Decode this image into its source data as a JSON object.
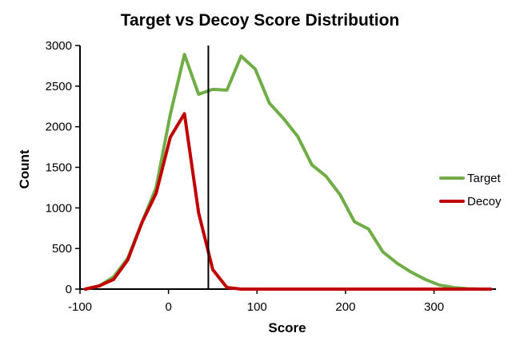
{
  "chart_data": {
    "type": "line",
    "title": "Target vs Decoy Score Distribution",
    "xlabel": "Score",
    "ylabel": "Count",
    "xlim": [
      -100,
      370
    ],
    "ylim": [
      0,
      3000
    ],
    "xticks": [
      -100,
      0,
      100,
      200,
      300
    ],
    "xtick_labels": [
      "-100",
      "0",
      "100",
      "200",
      "300"
    ],
    "yticks": [
      0,
      500,
      1000,
      1500,
      2000,
      2500,
      3000
    ],
    "ytick_labels": [
      "0",
      "500",
      "1000",
      "1500",
      "2000",
      "2500",
      "3000"
    ],
    "threshold_x": 45,
    "grid": false,
    "legend_position": "right",
    "series": [
      {
        "name": "Target",
        "color": "#70AD47",
        "points": [
          [
            -94,
            0
          ],
          [
            -78,
            40
          ],
          [
            -62,
            150
          ],
          [
            -46,
            380
          ],
          [
            -30,
            820
          ],
          [
            -14,
            1250
          ],
          [
            2,
            2150
          ],
          [
            18,
            2890
          ],
          [
            34,
            2400
          ],
          [
            50,
            2460
          ],
          [
            66,
            2450
          ],
          [
            82,
            2870
          ],
          [
            98,
            2710
          ],
          [
            114,
            2290
          ],
          [
            130,
            2100
          ],
          [
            146,
            1880
          ],
          [
            162,
            1530
          ],
          [
            178,
            1390
          ],
          [
            194,
            1160
          ],
          [
            210,
            830
          ],
          [
            226,
            740
          ],
          [
            242,
            460
          ],
          [
            258,
            320
          ],
          [
            274,
            210
          ],
          [
            290,
            120
          ],
          [
            306,
            50
          ],
          [
            322,
            20
          ],
          [
            338,
            5
          ],
          [
            354,
            0
          ],
          [
            364,
            0
          ]
        ]
      },
      {
        "name": "Decoy",
        "color": "#C00000",
        "points": [
          [
            -94,
            0
          ],
          [
            -78,
            40
          ],
          [
            -62,
            120
          ],
          [
            -46,
            360
          ],
          [
            -30,
            820
          ],
          [
            -14,
            1180
          ],
          [
            2,
            1870
          ],
          [
            18,
            2160
          ],
          [
            34,
            940
          ],
          [
            50,
            240
          ],
          [
            66,
            20
          ],
          [
            82,
            0
          ],
          [
            98,
            0
          ],
          [
            130,
            0
          ],
          [
            162,
            0
          ],
          [
            194,
            0
          ],
          [
            226,
            0
          ],
          [
            258,
            0
          ],
          [
            290,
            0
          ],
          [
            322,
            0
          ],
          [
            354,
            0
          ],
          [
            364,
            0
          ]
        ]
      }
    ]
  }
}
